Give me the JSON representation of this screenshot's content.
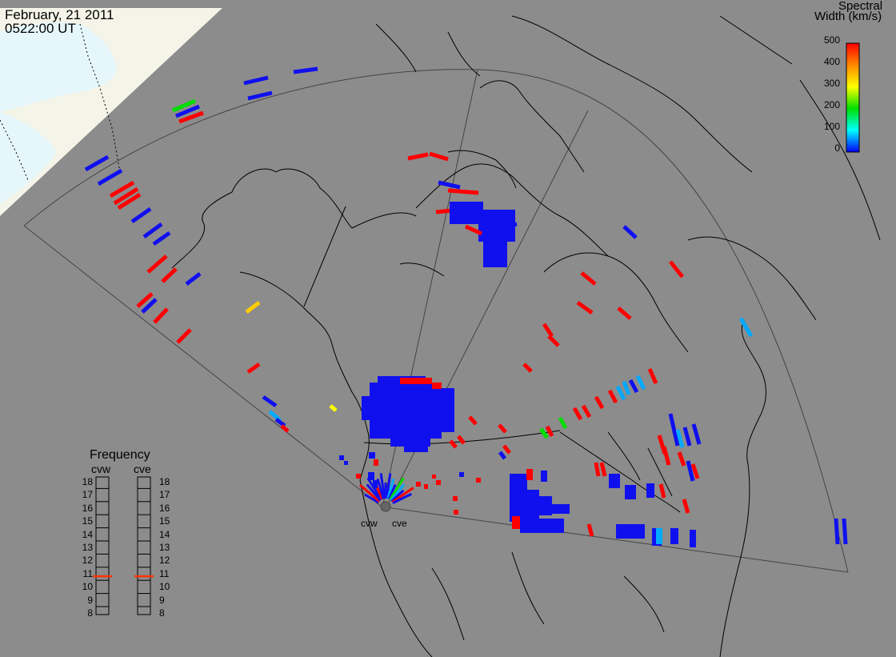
{
  "header": {
    "date": "February, 21 2011",
    "time": "0522:00 UT"
  },
  "colorbar": {
    "title_line1": "Spectral",
    "title_line2": "Width (km/s)",
    "ticks": [
      "500",
      "400",
      "300",
      "200",
      "100",
      "0"
    ],
    "colors": [
      "#ff0000",
      "#ff8800",
      "#ffff00",
      "#00e000",
      "#00ffff",
      "#0000ff"
    ]
  },
  "frequency": {
    "title": "Frequency",
    "radars": [
      "cvw",
      "cve"
    ],
    "ticks": [
      "18",
      "17",
      "16",
      "15",
      "14",
      "13",
      "12",
      "11",
      "10",
      "9",
      "8"
    ],
    "cvw_value_mhz": 10.8,
    "cve_value_mhz": 10.8,
    "indicator_color": "#ff3300"
  },
  "radars": {
    "cvw_label": "cvw",
    "cve_label": "cve"
  },
  "colors": {
    "background_land": "#8c8c8c",
    "daylight_region": "#f4f4e8",
    "sea_light": "#e6f7fb",
    "coastline": "#000000",
    "field_of_view": "#444444"
  }
}
